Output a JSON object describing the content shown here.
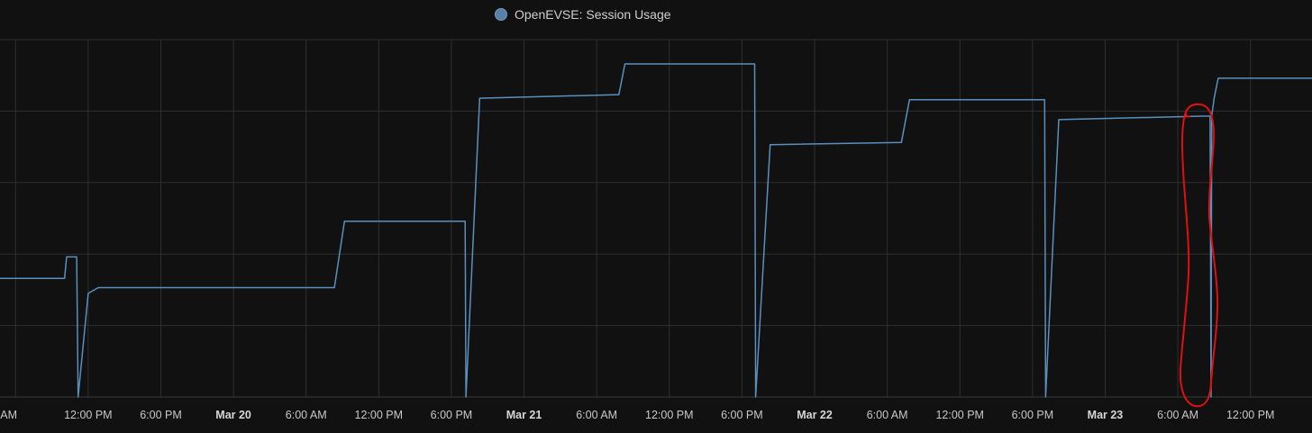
{
  "chart_data": {
    "type": "line",
    "title": "",
    "xlabel": "",
    "ylabel": "",
    "x_range": [
      "2024-03-19T04:43",
      "2024-03-23T17:05"
    ],
    "y_range": [
      0,
      5
    ],
    "x_ticks": [
      {
        "x": "2024-03-19T06:00",
        "label": "AM",
        "major": false
      },
      {
        "x": "2024-03-19T12:00",
        "label": "12:00 PM",
        "major": false
      },
      {
        "x": "2024-03-19T18:00",
        "label": "6:00 PM",
        "major": false
      },
      {
        "x": "2024-03-20T00:00",
        "label": "Mar 20",
        "major": true
      },
      {
        "x": "2024-03-20T06:00",
        "label": "6:00 AM",
        "major": false
      },
      {
        "x": "2024-03-20T12:00",
        "label": "12:00 PM",
        "major": false
      },
      {
        "x": "2024-03-20T18:00",
        "label": "6:00 PM",
        "major": false
      },
      {
        "x": "2024-03-21T00:00",
        "label": "Mar 21",
        "major": true
      },
      {
        "x": "2024-03-21T06:00",
        "label": "6:00 AM",
        "major": false
      },
      {
        "x": "2024-03-21T12:00",
        "label": "12:00 PM",
        "major": false
      },
      {
        "x": "2024-03-21T18:00",
        "label": "6:00 PM",
        "major": false
      },
      {
        "x": "2024-03-22T00:00",
        "label": "Mar 22",
        "major": true
      },
      {
        "x": "2024-03-22T06:00",
        "label": "6:00 AM",
        "major": false
      },
      {
        "x": "2024-03-22T12:00",
        "label": "12:00 PM",
        "major": false
      },
      {
        "x": "2024-03-22T18:00",
        "label": "6:00 PM",
        "major": false
      },
      {
        "x": "2024-03-23T00:00",
        "label": "Mar 23",
        "major": true
      },
      {
        "x": "2024-03-23T06:00",
        "label": "6:00 AM",
        "major": false
      },
      {
        "x": "2024-03-23T12:00",
        "label": "12:00 PM",
        "major": false
      }
    ],
    "grid": true,
    "legend": "top-center",
    "series": [
      {
        "name": "OpenEVSE: Session Usage",
        "color": "#5b8fbd",
        "points": [
          [
            "2024-03-19T04:43",
            1.66
          ],
          [
            "2024-03-19T10:03",
            1.66
          ],
          [
            "2024-03-19T10:13",
            1.96
          ],
          [
            "2024-03-19T11:03",
            1.96
          ],
          [
            "2024-03-19T11:10",
            0.0
          ],
          [
            "2024-03-19T12:00",
            1.45
          ],
          [
            "2024-03-19T12:50",
            1.53
          ],
          [
            "2024-03-20T08:20",
            1.53
          ],
          [
            "2024-03-20T09:10",
            2.46
          ],
          [
            "2024-03-20T19:08",
            2.46
          ],
          [
            "2024-03-20T19:12",
            0.0
          ],
          [
            "2024-03-20T20:20",
            4.18
          ],
          [
            "2024-03-21T07:50",
            4.23
          ],
          [
            "2024-03-21T08:20",
            4.66
          ],
          [
            "2024-03-21T19:03",
            4.66
          ],
          [
            "2024-03-21T19:08",
            0.0
          ],
          [
            "2024-03-21T20:20",
            3.53
          ],
          [
            "2024-03-22T07:10",
            3.56
          ],
          [
            "2024-03-22T07:50",
            4.16
          ],
          [
            "2024-03-22T19:00",
            4.16
          ],
          [
            "2024-03-22T19:05",
            0.0
          ],
          [
            "2024-03-22T20:10",
            3.88
          ],
          [
            "2024-03-23T08:00",
            3.93
          ],
          [
            "2024-03-23T08:40",
            3.93
          ],
          [
            "2024-03-23T08:45",
            0.0
          ],
          [
            "2024-03-23T08:48",
            3.93
          ],
          [
            "2024-03-23T09:00",
            4.18
          ],
          [
            "2024-03-23T09:20",
            4.46
          ],
          [
            "2024-03-23T17:05",
            4.46
          ]
        ]
      }
    ]
  },
  "legend": {
    "label": "OpenEVSE: Session Usage",
    "color": "#5b8fbd"
  },
  "annotation": {
    "color": "#e01010"
  }
}
